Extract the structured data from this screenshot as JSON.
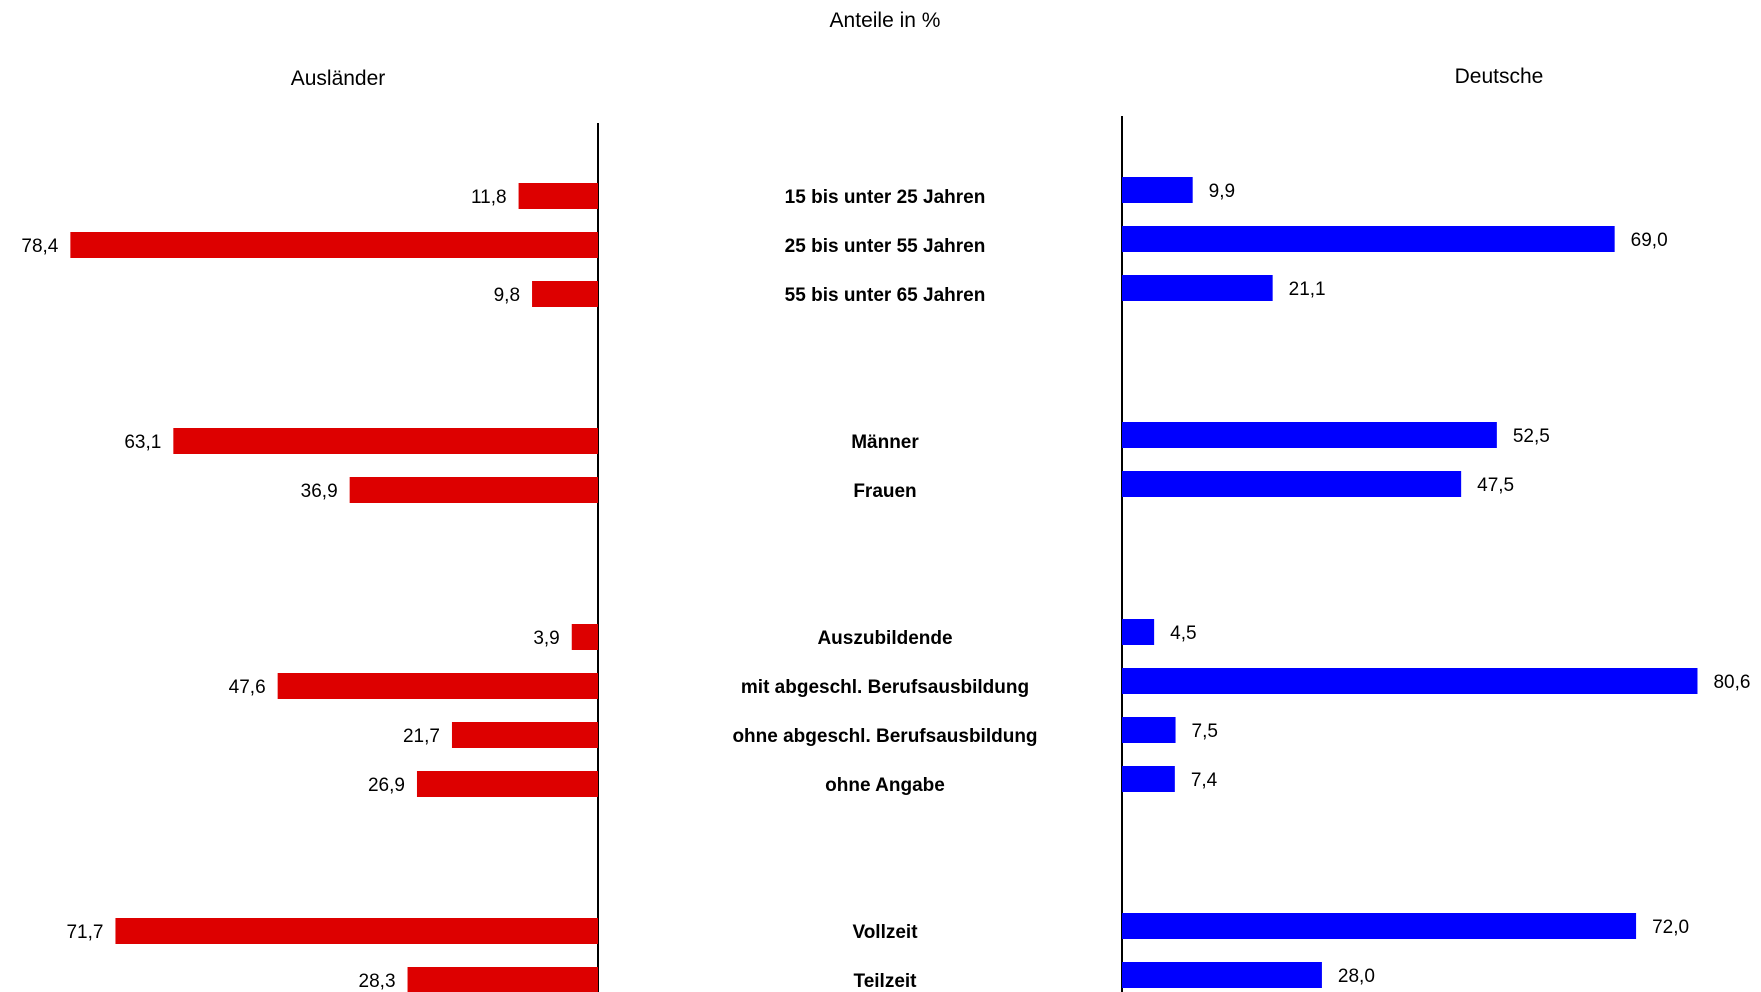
{
  "chart_data": {
    "type": "bar",
    "title": "Anteile in %",
    "categories": [
      "15 bis unter 25 Jahren",
      "25 bis unter 55 Jahren",
      "55 bis unter 65 Jahren",
      "Männer",
      "Frauen",
      "Auszubildende",
      "mit abgeschl. Berufsausbildung",
      "ohne abgeschl. Berufsausbildung",
      "ohne Angabe",
      "Vollzeit",
      "Teilzeit"
    ],
    "series": [
      {
        "name": "Ausländer",
        "color": "#dd0000",
        "values": [
          11.8,
          78.4,
          9.8,
          63.1,
          36.9,
          3.9,
          47.6,
          21.7,
          26.9,
          71.7,
          28.3
        ],
        "labels": [
          "11,8",
          "78,4",
          "9,8",
          "63,1",
          "36,9",
          "3,9",
          "47,6",
          "21,7",
          "26,9",
          "71,7",
          "28,3"
        ]
      },
      {
        "name": "Deutsche",
        "color": "#0000ff",
        "values": [
          9.9,
          69.0,
          21.1,
          52.5,
          47.5,
          4.5,
          80.6,
          7.5,
          7.4,
          72.0,
          28.0
        ],
        "labels": [
          "9,9",
          "69,0",
          "21,1",
          "52,5",
          "47,5",
          "4,5",
          "80,6",
          "7,5",
          "7,4",
          "72,0",
          "28,0"
        ]
      }
    ],
    "xlim": [
      0,
      100
    ],
    "grid": false
  }
}
